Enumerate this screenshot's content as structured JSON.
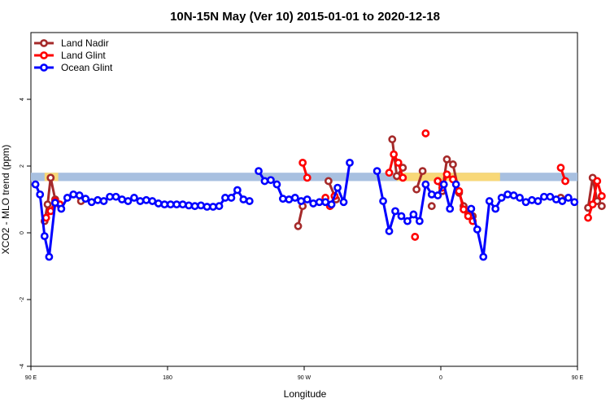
{
  "chart_data": {
    "type": "line",
    "title": "10N-15N May (Ver 10)   2015-01-01 to 2020-12-18",
    "xlabel": "Longitude",
    "ylabel": "XCO2 - MLO trend (ppm)",
    "xlim": [
      90,
      450
    ],
    "ylim": [
      -4,
      6
    ],
    "x_ticks": [
      {
        "value": 90,
        "label": "90 E"
      },
      {
        "value": 180,
        "label": "180"
      },
      {
        "value": 270,
        "label": "90 W"
      },
      {
        "value": 360,
        "label": "0"
      },
      {
        "value": 450,
        "label": "90 E"
      },
      {
        "value": 540,
        "label": "180"
      }
    ],
    "y_ticks": [
      {
        "value": -4,
        "label": "-4"
      },
      {
        "value": -2,
        "label": "-2"
      },
      {
        "value": 0,
        "label": "0"
      },
      {
        "value": 2,
        "label": "2"
      },
      {
        "value": 4,
        "label": "4"
      }
    ],
    "legend_position": "top-left",
    "grid": false,
    "band": {
      "y_low": 1.55,
      "y_high": 1.8,
      "color": "#a8c0e0"
    },
    "land_band": {
      "color": "#f8d878",
      "segments": [
        [
          99,
          108
        ],
        [
          331,
          399
        ],
        [
          477,
          495
        ],
        [
          563,
          570
        ],
        [
          633,
          650
        ]
      ]
    },
    "series": [
      {
        "name": "Land Nadir",
        "color": "#a52a2a",
        "segments": [
          [
            [
              99,
              0.35
            ],
            [
              101,
              0.85
            ],
            [
              103,
              1.65
            ],
            [
              106,
              1.0
            ],
            [
              109,
              0.85
            ]
          ],
          [
            [
              123,
              0.95
            ]
          ],
          [
            [
              266,
              0.2
            ],
            [
              269,
              0.8
            ]
          ],
          [
            [
              286,
              1.55
            ],
            [
              291,
              1.0
            ]
          ],
          [
            [
              328,
              2.8
            ],
            [
              331,
              1.7
            ],
            [
              335,
              1.95
            ]
          ],
          [
            [
              344,
              1.3
            ],
            [
              348,
              1.85
            ]
          ],
          [
            [
              354,
              0.8
            ]
          ],
          [
            [
              358,
              1.55
            ],
            [
              361,
              1.25
            ],
            [
              364,
              2.2
            ],
            [
              368,
              2.05
            ],
            [
              372,
              1.2
            ],
            [
              375,
              0.8
            ],
            [
              378,
              0.55
            ],
            [
              381,
              0.5
            ]
          ],
          [
            [
              439,
              1.05
            ]
          ],
          [
            [
              457,
              0.75
            ],
            [
              460,
              1.65
            ],
            [
              463,
              0.95
            ],
            [
              466,
              0.8
            ]
          ],
          [
            [
              477,
              0.95
            ]
          ]
        ]
      },
      {
        "name": "Land Glint",
        "color": "#ff0000",
        "segments": [
          [
            [
              100,
              0.45
            ],
            [
              103,
              0.65
            ],
            [
              106,
              0.95
            ],
            [
              109,
              0.85
            ]
          ],
          [
            [
              269,
              2.1
            ],
            [
              272,
              1.65
            ]
          ],
          [
            [
              284,
              1.05
            ],
            [
              287,
              0.8
            ],
            [
              290,
              1.1
            ]
          ],
          [
            [
              326,
              1.8
            ],
            [
              329,
              2.35
            ],
            [
              332,
              2.1
            ],
            [
              335,
              1.65
            ]
          ],
          [
            [
              343,
              -0.12
            ]
          ],
          [
            [
              350,
              2.98
            ]
          ],
          [
            [
              358,
              1.55
            ],
            [
              361,
              1.35
            ],
            [
              364,
              1.75
            ],
            [
              368,
              1.6
            ],
            [
              372,
              1.25
            ],
            [
              375,
              0.7
            ],
            [
              378,
              0.5
            ],
            [
              381,
              0.35
            ]
          ],
          [
            [
              439,
              1.95
            ],
            [
              442,
              1.55
            ]
          ],
          [
            [
              457,
              0.45
            ],
            [
              460,
              0.85
            ],
            [
              463,
              1.55
            ],
            [
              466,
              1.1
            ]
          ],
          [
            [
              477,
              0.95
            ]
          ]
        ]
      },
      {
        "name": "Ocean Glint",
        "color": "#0000ff",
        "segments": [
          [
            [
              93,
              1.45
            ],
            [
              96,
              1.15
            ],
            [
              99,
              -0.1
            ],
            [
              102,
              -0.72
            ],
            [
              106,
              0.9
            ],
            [
              110,
              0.72
            ],
            [
              114,
              1.05
            ],
            [
              118,
              1.15
            ],
            [
              122,
              1.12
            ],
            [
              126,
              1.02
            ],
            [
              130,
              0.92
            ],
            [
              134,
              0.98
            ],
            [
              138,
              0.95
            ],
            [
              142,
              1.08
            ],
            [
              146,
              1.08
            ],
            [
              150,
              1.0
            ],
            [
              154,
              0.95
            ],
            [
              158,
              1.05
            ],
            [
              162,
              0.95
            ],
            [
              166,
              0.98
            ],
            [
              170,
              0.95
            ],
            [
              174,
              0.88
            ],
            [
              178,
              0.85
            ],
            [
              182,
              0.85
            ],
            [
              186,
              0.85
            ],
            [
              190,
              0.85
            ],
            [
              194,
              0.82
            ],
            [
              198,
              0.8
            ],
            [
              202,
              0.82
            ],
            [
              206,
              0.78
            ],
            [
              210,
              0.78
            ],
            [
              214,
              0.8
            ],
            [
              218,
              1.05
            ],
            [
              222,
              1.05
            ],
            [
              226,
              1.28
            ],
            [
              230,
              1.0
            ],
            [
              234,
              0.95
            ]
          ],
          [
            [
              240,
              1.85
            ],
            [
              244,
              1.55
            ],
            [
              248,
              1.58
            ],
            [
              252,
              1.45
            ],
            [
              256,
              1.02
            ],
            [
              260,
              1.0
            ],
            [
              264,
              1.05
            ],
            [
              268,
              0.95
            ],
            [
              272,
              1.0
            ],
            [
              276,
              0.88
            ],
            [
              280,
              0.92
            ],
            [
              284,
              0.92
            ],
            [
              288,
              0.85
            ],
            [
              292,
              1.35
            ],
            [
              296,
              0.92
            ],
            [
              300,
              2.1
            ]
          ],
          [
            [
              318,
              1.85
            ],
            [
              322,
              0.95
            ],
            [
              326,
              0.05
            ],
            [
              330,
              0.65
            ],
            [
              334,
              0.5
            ],
            [
              338,
              0.35
            ],
            [
              342,
              0.55
            ],
            [
              346,
              0.35
            ],
            [
              350,
              1.45
            ],
            [
              354,
              1.15
            ],
            [
              358,
              1.12
            ],
            [
              362,
              1.45
            ],
            [
              366,
              0.72
            ],
            [
              370,
              1.45
            ]
          ],
          [
            [
              380,
              0.72
            ],
            [
              384,
              0.1
            ],
            [
              388,
              -0.72
            ],
            [
              392,
              0.95
            ],
            [
              396,
              0.72
            ],
            [
              400,
              1.05
            ],
            [
              404,
              1.15
            ],
            [
              408,
              1.12
            ],
            [
              412,
              1.05
            ],
            [
              416,
              0.92
            ],
            [
              420,
              0.98
            ],
            [
              424,
              0.95
            ],
            [
              428,
              1.08
            ],
            [
              432,
              1.08
            ],
            [
              436,
              1.0
            ],
            [
              440,
              0.95
            ],
            [
              444,
              1.05
            ],
            [
              448,
              0.92
            ]
          ]
        ]
      }
    ]
  }
}
